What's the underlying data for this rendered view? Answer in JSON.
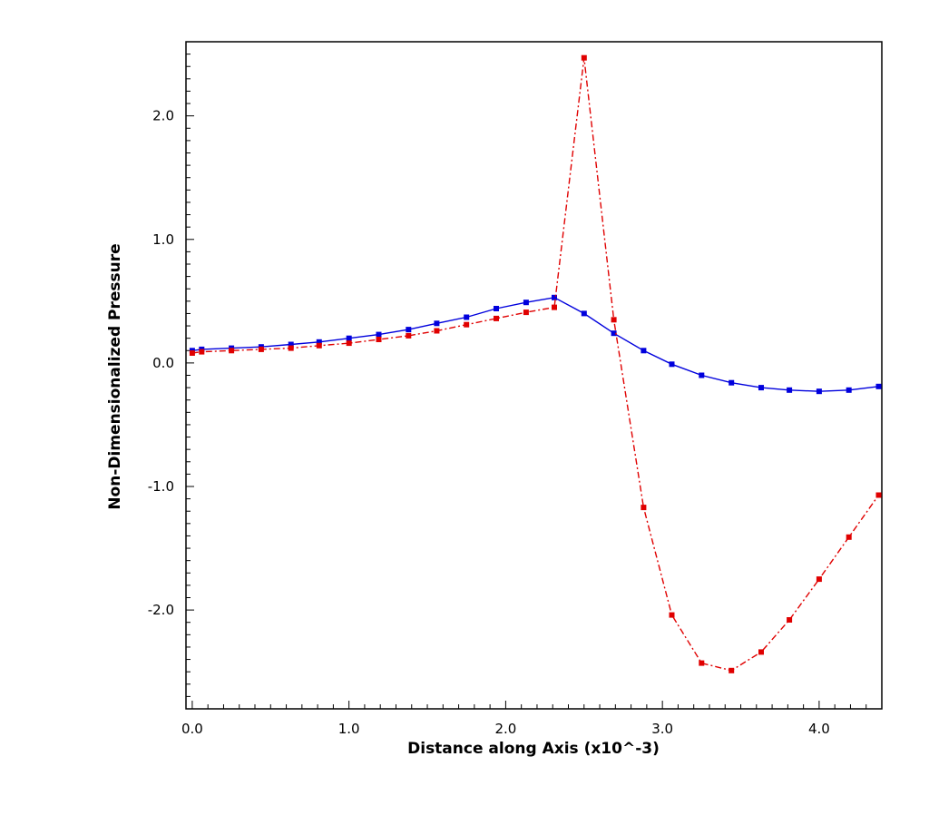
{
  "chart_data": {
    "type": "line",
    "title": "",
    "xlabel": "Distance along Axis (x10^-3)",
    "ylabel": "Non-Dimensionalized Pressure",
    "xlim": [
      -0.04,
      4.4
    ],
    "ylim": [
      -2.8,
      2.6
    ],
    "xticks": [
      0.0,
      1.0,
      2.0,
      3.0,
      4.0
    ],
    "xtick_labels": [
      "0.0",
      "1.0",
      "2.0",
      "3.0",
      "4.0"
    ],
    "yticks": [
      2.0,
      1.0,
      0.0,
      -1.0,
      -2.0
    ],
    "ytick_labels": [
      "2.0",
      "1.0",
      "0.0",
      "-1.0",
      "-2.0"
    ],
    "grid": false,
    "legend": "none",
    "series": [
      {
        "color": "#0000dd",
        "line_style": "solid",
        "marker": "square",
        "x": [
          0.0,
          0.06,
          0.25,
          0.44,
          0.63,
          0.81,
          1.0,
          1.19,
          1.38,
          1.56,
          1.75,
          1.94,
          2.13,
          2.31,
          2.5,
          2.69,
          2.88,
          3.06,
          3.25,
          3.44,
          3.63,
          3.81,
          4.0,
          4.19,
          4.38
        ],
        "y": [
          0.1,
          0.11,
          0.12,
          0.13,
          0.15,
          0.17,
          0.2,
          0.23,
          0.27,
          0.32,
          0.37,
          0.44,
          0.49,
          0.53,
          0.4,
          0.24,
          0.1,
          -0.01,
          -0.1,
          -0.16,
          -0.2,
          -0.22,
          -0.23,
          -0.22,
          -0.19
        ]
      },
      {
        "color": "#e00000",
        "line_style": "dashdot",
        "marker": "square",
        "x": [
          0.0,
          0.06,
          0.25,
          0.44,
          0.63,
          0.81,
          1.0,
          1.19,
          1.38,
          1.56,
          1.75,
          1.94,
          2.13,
          2.31,
          2.5,
          2.69,
          2.88,
          3.06,
          3.25,
          3.44,
          3.63,
          3.81,
          4.0,
          4.19,
          4.38
        ],
        "y": [
          0.08,
          0.09,
          0.1,
          0.11,
          0.12,
          0.14,
          0.16,
          0.19,
          0.22,
          0.26,
          0.31,
          0.36,
          0.41,
          0.45,
          2.47,
          0.35,
          -1.17,
          -2.04,
          -2.43,
          -2.49,
          -2.34,
          -2.08,
          -1.75,
          -1.41,
          -1.07
        ]
      }
    ]
  }
}
